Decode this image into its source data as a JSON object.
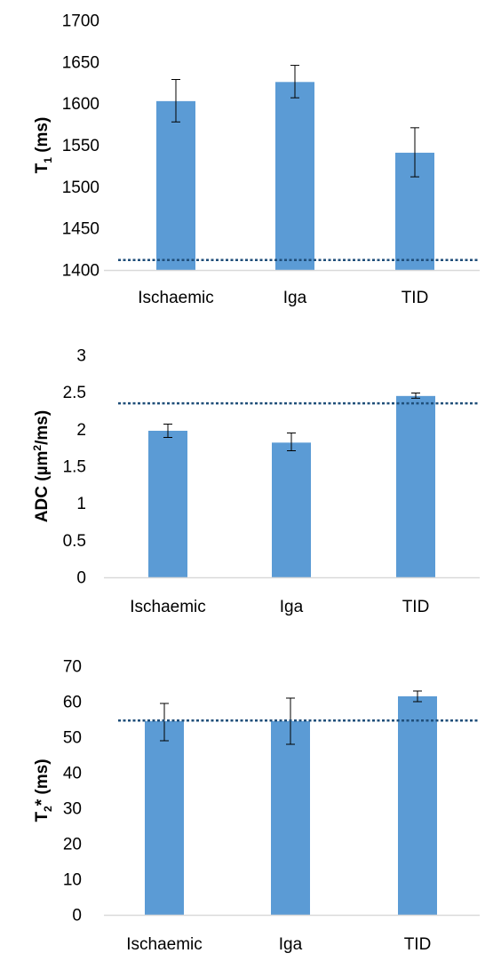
{
  "colors": {
    "bar": "#5b9bd5",
    "reference": "#1f4e79",
    "axis": "#d9d9d9",
    "error": "#000000"
  },
  "chart_data": [
    {
      "type": "bar",
      "categories": [
        "Ischaemic",
        "Iga",
        "TID"
      ],
      "values": [
        1603,
        1626,
        1541
      ],
      "errors": [
        [
          1578,
          1629
        ],
        [
          1607,
          1646
        ],
        [
          1512,
          1571
        ]
      ],
      "reference_line": 1412,
      "ylabel": {
        "main": "T",
        "sub": "1",
        "rest": " (ms)"
      },
      "ylim": [
        1400,
        1700
      ],
      "yticks": [
        "1400",
        "1450",
        "1500",
        "1550",
        "1600",
        "1650",
        "1700"
      ],
      "grid": false
    },
    {
      "type": "bar",
      "categories": [
        "Ischaemic",
        "Iga",
        "TID"
      ],
      "values": [
        1.98,
        1.82,
        2.45
      ],
      "errors": [
        [
          1.89,
          2.07
        ],
        [
          1.71,
          1.95
        ],
        [
          2.42,
          2.49
        ]
      ],
      "reference_line": 2.35,
      "ylabel": {
        "pre": "ADC (µm",
        "sup": "2",
        "post": "/ms)"
      },
      "ylim": [
        0,
        3
      ],
      "yticks": [
        "0",
        "0.5",
        "1",
        "1.5",
        "2",
        "2.5",
        "3"
      ],
      "grid": false
    },
    {
      "type": "bar",
      "categories": [
        "Ischaemic",
        "Iga",
        "TID"
      ],
      "values": [
        54.5,
        54.5,
        61.5
      ],
      "errors": [
        [
          49,
          59.5
        ],
        [
          48,
          61
        ],
        [
          60,
          63
        ]
      ],
      "reference_line": 54.7,
      "ylabel": {
        "main": "T",
        "sub": "2",
        "rest": "* (ms)"
      },
      "ylim": [
        0,
        70
      ],
      "yticks": [
        "0",
        "10",
        "20",
        "30",
        "40",
        "50",
        "60",
        "70"
      ],
      "grid": false
    }
  ]
}
